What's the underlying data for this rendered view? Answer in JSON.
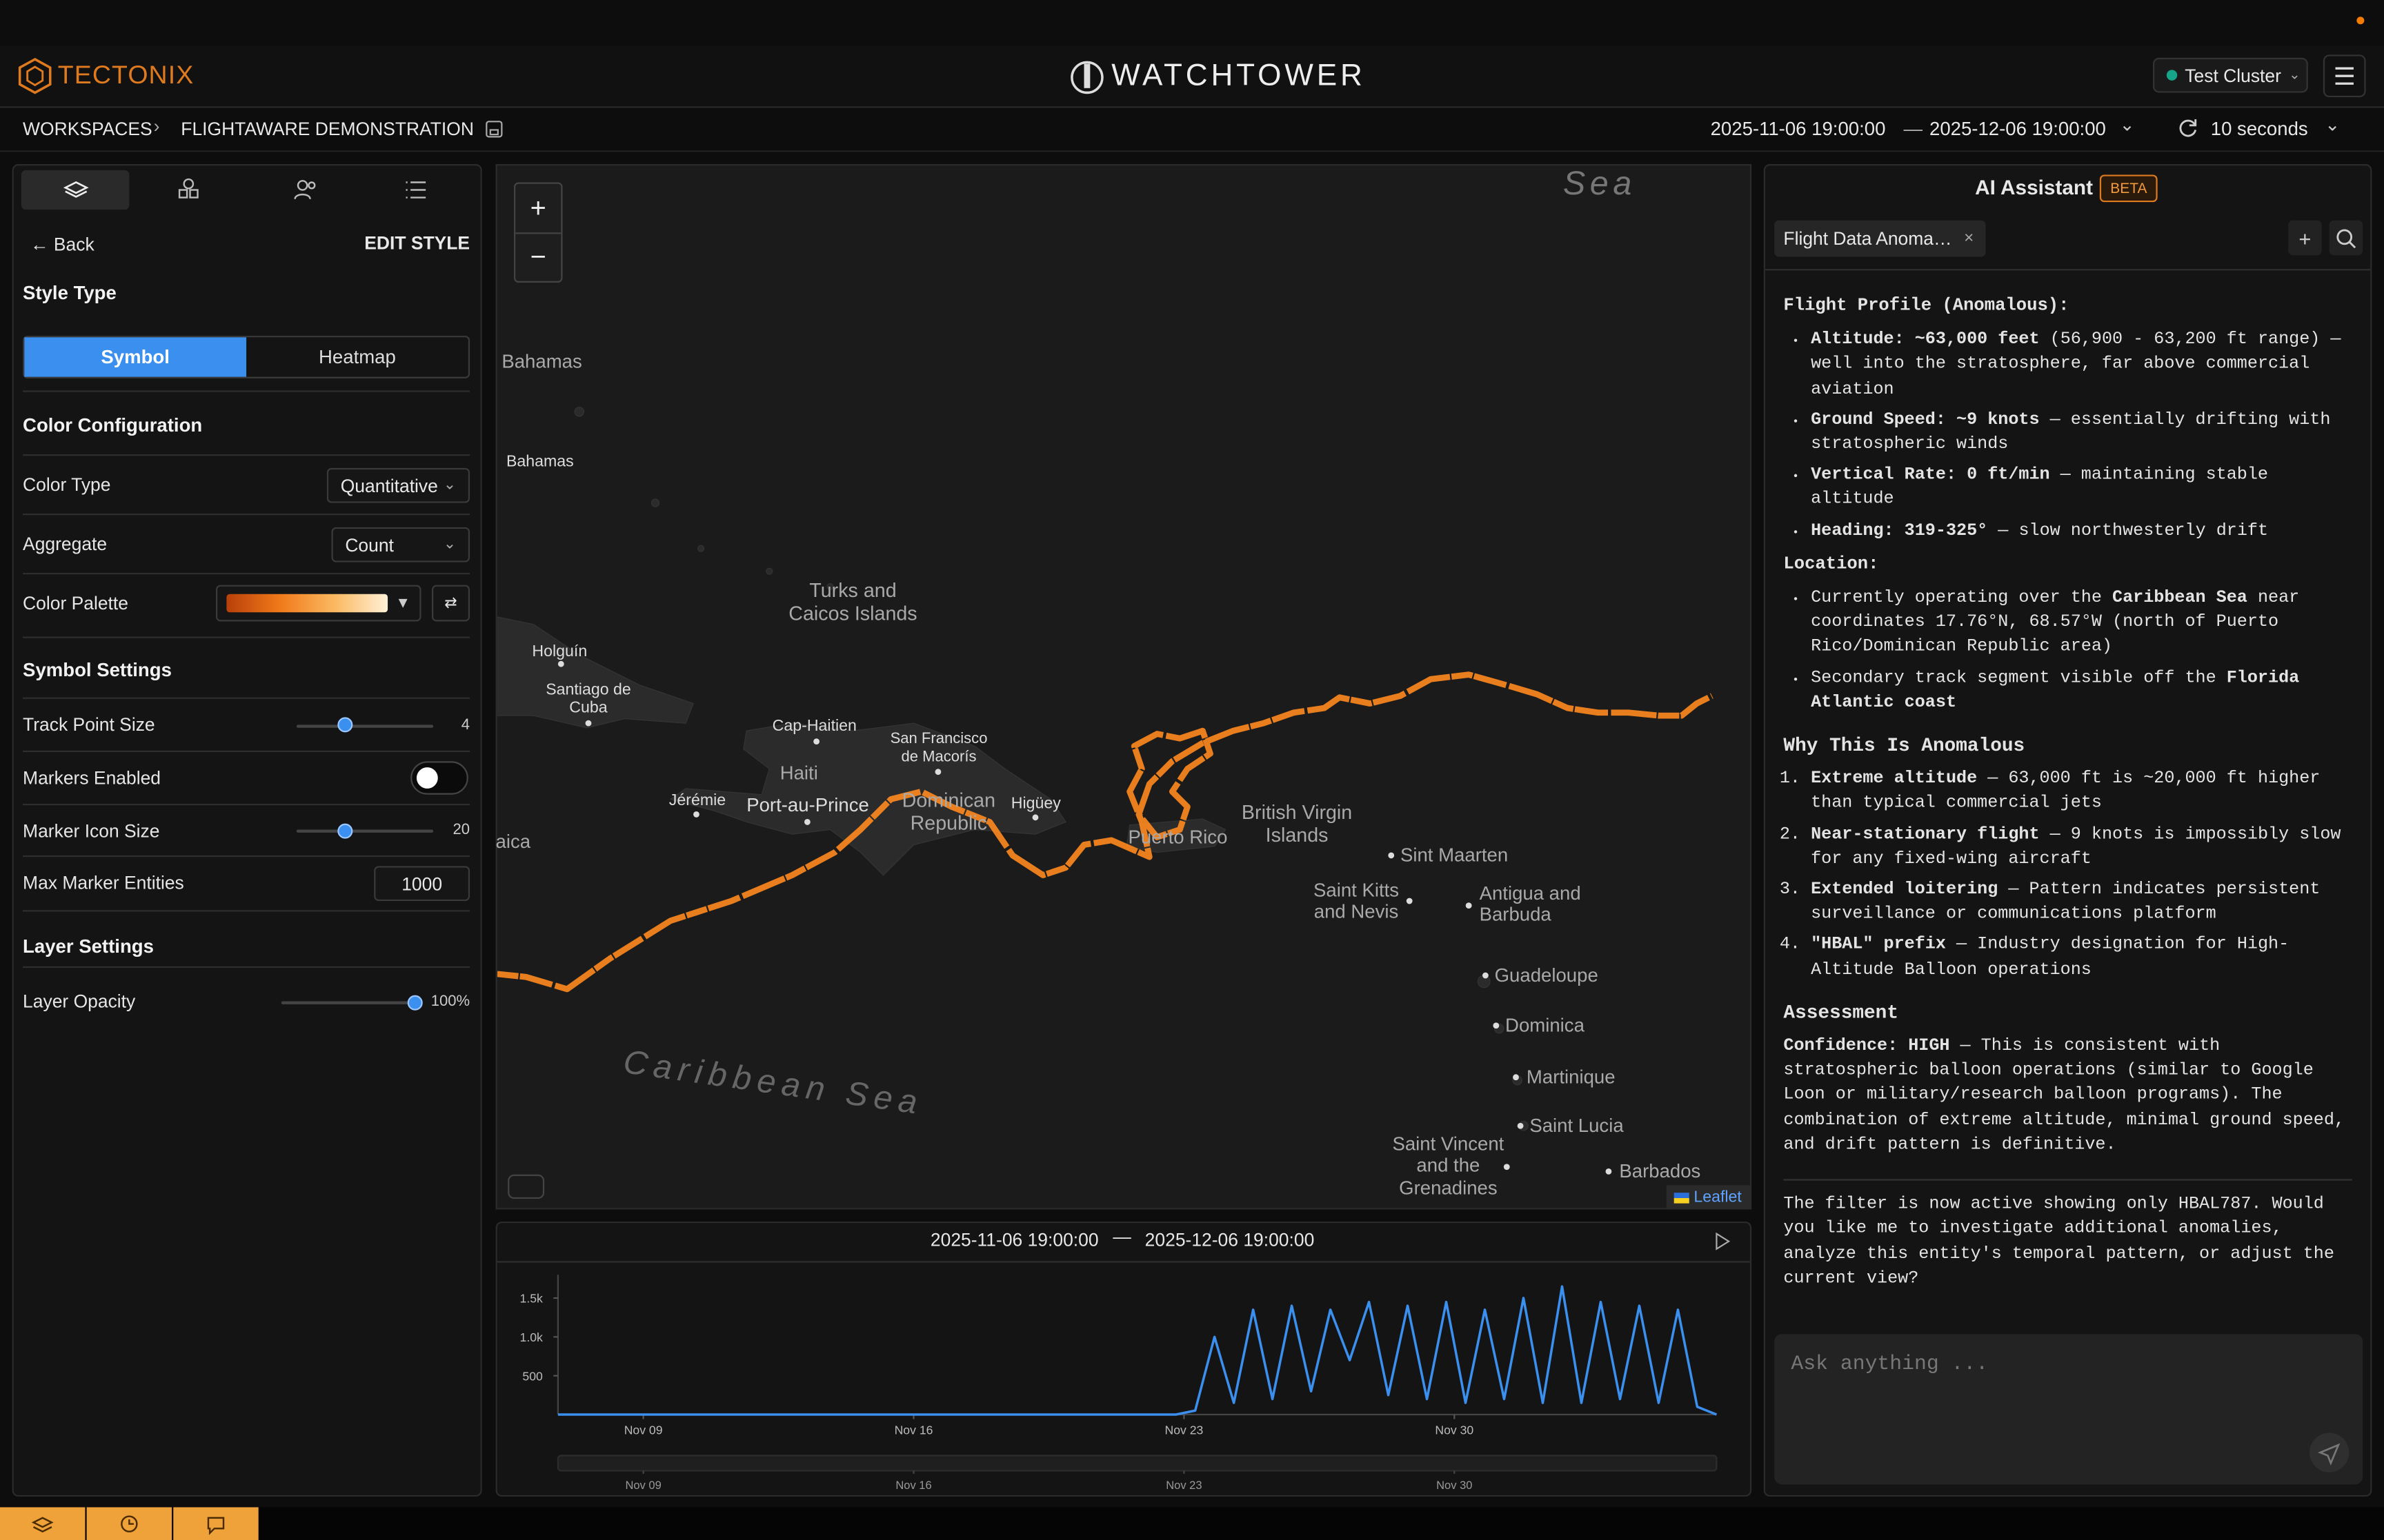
{
  "header": {
    "brand": "TECTONIX",
    "title": "WATCHTOWER",
    "cluster": "Test Cluster"
  },
  "breadcrumb": [
    "WORKSPACES",
    "FLIGHTAWARE DEMONSTRATION"
  ],
  "time_range": {
    "start": "2025-11-06 19:00:00",
    "end": "2025-12-06 19:00:00",
    "refresh": "10 seconds"
  },
  "style_panel": {
    "back": "Back",
    "title": "EDIT STYLE",
    "style_type": "Style Type",
    "tabs": [
      "Symbol",
      "Heatmap"
    ],
    "color_section": "Color Configuration",
    "color_type": {
      "label": "Color Type",
      "value": "Quantitative"
    },
    "aggregate": {
      "label": "Aggregate",
      "value": "Count"
    },
    "palette": "Color Palette",
    "symbol_section": "Symbol Settings",
    "track_point_size": {
      "label": "Track Point Size",
      "value": 4
    },
    "markers_enabled": "Markers Enabled",
    "marker_icon_size": {
      "label": "Marker Icon Size",
      "value": 20
    },
    "max_marker_entities": {
      "label": "Max Marker Entities",
      "value": 1000
    },
    "layer_section": "Layer Settings",
    "layer_opacity": {
      "label": "Layer Opacity",
      "value": 100,
      "value_label": "100%"
    }
  },
  "map": {
    "labels": [
      "Sea",
      "Bahamas",
      "Bahamas",
      "Turks and Caicos Islands",
      "Holguín",
      "Santiago de Cuba",
      "Cap-Haitien",
      "San Francisco de Macorís",
      "Haiti",
      "Jérémie",
      "Port-au-Prince",
      "Dominican Republic",
      "Higüey",
      "aica",
      "British Virgin Islands",
      "Puerto Rico",
      "Sint Maarten",
      "Saint Kitts and Nevis",
      "Antigua and Barbuda",
      "Guadeloupe",
      "Dominica",
      "Martinique",
      "Saint Lucia",
      "Saint Vincent and the Grenadines",
      "Barbados",
      "Caribbean Sea"
    ],
    "attribution": "Leaflet"
  },
  "chart_data": {
    "type": "line",
    "color": "#3b8fee",
    "x": [
      0,
      0.5,
      1,
      1.5,
      2,
      2.5,
      3,
      3.5,
      4,
      4.5,
      5,
      5.5,
      6,
      6.5,
      7,
      7.5,
      8,
      8.5,
      9,
      9.5,
      10,
      10.5,
      11,
      11.5,
      12,
      12.5,
      13,
      13.5,
      14,
      14.5,
      15,
      15.5,
      16,
      16.5,
      17,
      17.5,
      18,
      18.5,
      19,
      19.5,
      20,
      20.5,
      21,
      21.5,
      22,
      22.5,
      23,
      23.5,
      24,
      24.5,
      25,
      25.5,
      26,
      26.5,
      27,
      27.5,
      28,
      28.5,
      29,
      29.5,
      30
    ],
    "values": [
      0,
      0,
      0,
      0,
      0,
      0,
      0,
      0,
      0,
      0,
      0,
      0,
      0,
      0,
      0,
      0,
      0,
      0,
      0,
      0,
      0,
      0,
      0,
      0,
      0,
      0,
      0,
      0,
      0,
      0,
      0,
      0,
      0,
      50,
      1000,
      150,
      1350,
      200,
      1400,
      300,
      1350,
      700,
      1450,
      250,
      1400,
      200,
      1450,
      150,
      1350,
      200,
      1500,
      150,
      1650,
      150,
      1450,
      200,
      1400,
      150,
      1350,
      100,
      0
    ],
    "xlim": [
      0,
      30
    ],
    "ylim": [
      0,
      1800
    ],
    "xticks": [
      {
        "value": 2.21,
        "label": "Nov 09"
      },
      {
        "value": 9.21,
        "label": "Nov 16"
      },
      {
        "value": 16.21,
        "label": "Nov 23"
      },
      {
        "value": 23.21,
        "label": "Nov 30"
      }
    ],
    "yticks": [
      500,
      {
        "value": 1000,
        "label": "1.0k"
      },
      {
        "value": 1500,
        "label": "1.5k"
      }
    ]
  },
  "assistant": {
    "title": "AI Assistant",
    "badge": "BETA",
    "tab": "Flight Data Anoma…",
    "input_placeholder": "Ask anything ...",
    "sections": [
      {
        "heading": "Flight Profile (Anomalous):",
        "items": [
          [
            {
              "bold": "Altitude: ~63,000 feet"
            },
            {
              "text": " (56,900 - 63,200 ft range) — well into the stratosphere, far above commercial aviation"
            }
          ],
          [
            {
              "bold": "Ground Speed: ~9 knots"
            },
            {
              "text": " — essentially drifting with stratospheric winds"
            }
          ],
          [
            {
              "bold": "Vertical Rate: 0 ft/min"
            },
            {
              "text": " — maintaining stable altitude"
            }
          ],
          [
            {
              "bold": "Heading: 319-325°"
            },
            {
              "text": " — slow northwesterly drift"
            }
          ]
        ]
      },
      {
        "heading": "Location:",
        "items": [
          [
            {
              "text": "Currently operating over the "
            },
            {
              "bold": "Caribbean Sea"
            },
            {
              "text": " near coordinates 17.76°N, 68.57°W (north of Puerto Rico/Dominican Republic area)"
            }
          ],
          [
            {
              "text": "Secondary track segment visible off the "
            },
            {
              "bold": "Florida Atlantic coast"
            }
          ]
        ]
      },
      {
        "heading": "Why This Is Anomalous",
        "numbered_items": [
          [
            {
              "bold": "Extreme altitude"
            },
            {
              "text": " — 63,000 ft is ~20,000 ft higher than typical commercial jets"
            }
          ],
          [
            {
              "bold": "Near-stationary flight"
            },
            {
              "text": " — 9 knots is impossibly slow for any fixed-wing aircraft"
            }
          ],
          [
            {
              "bold": "Extended loitering"
            },
            {
              "text": " — Pattern indicates persistent surveillance or communications platform"
            }
          ],
          [
            {
              "bold": "\"HBAL\" prefix"
            },
            {
              "text": " — Industry designation for High-Altitude Balloon operations"
            }
          ]
        ]
      },
      {
        "heading": "Assessment",
        "paragraph": [
          {
            "bold": "Confidence: HIGH"
          },
          {
            "text": " — This is consistent with stratospheric balloon operations (similar to Google Loon or military/research balloon programs). The combination of extreme altitude, minimal ground speed, and drift pattern is definitive."
          }
        ]
      }
    ],
    "closing": "The filter is now active showing only HBAL787. Would you like me to investigate additional anomalies, analyze this entity's temporal pattern, or adjust the current view?"
  }
}
